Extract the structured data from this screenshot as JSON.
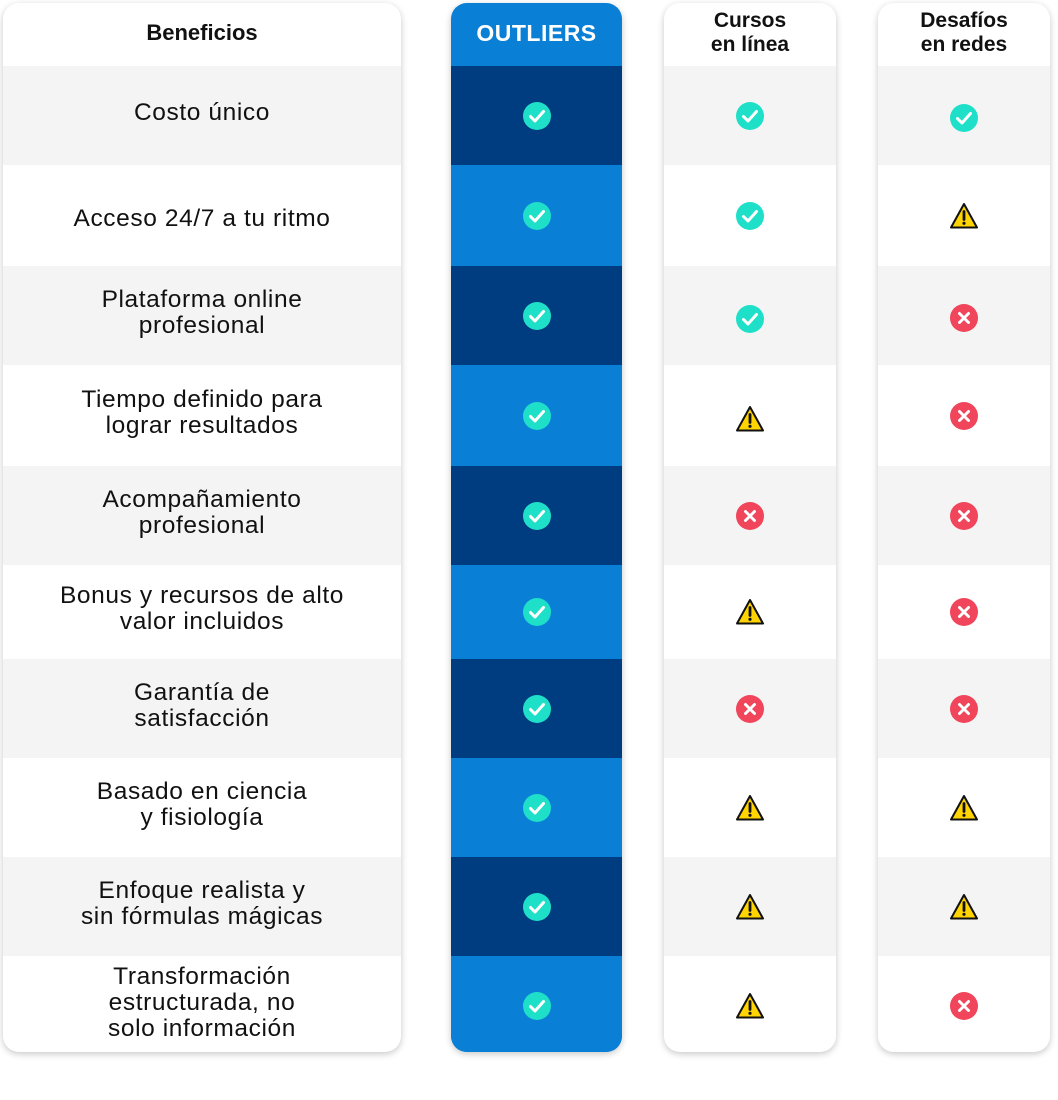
{
  "headers": {
    "benefits": "Beneficios",
    "outliers": "OUTLIERS",
    "cursos": "Cursos\nen línea",
    "redes": "Desafíos\nen redes"
  },
  "rows": [
    {
      "label": "Costo único",
      "outliers": "check",
      "cursos": "check",
      "redes": "check"
    },
    {
      "label": "Acceso 24/7 a tu ritmo",
      "outliers": "check",
      "cursos": "check",
      "redes": "warning"
    },
    {
      "label": "Plataforma online\nprofesional",
      "outliers": "check",
      "cursos": "check",
      "redes": "cross"
    },
    {
      "label": "Tiempo definido para\nlograr resultados",
      "outliers": "check",
      "cursos": "warning",
      "redes": "cross"
    },
    {
      "label": "Acompañamiento\nprofesional",
      "outliers": "check",
      "cursos": "cross",
      "redes": "cross"
    },
    {
      "label": "Bonus y recursos de alto\nvalor incluidos",
      "outliers": "check",
      "cursos": "warning",
      "redes": "cross"
    },
    {
      "label": "Garantía de\nsatisfacción",
      "outliers": "check",
      "cursos": "cross",
      "redes": "cross"
    },
    {
      "label": "Basado en ciencia\ny fisiología",
      "outliers": "check",
      "cursos": "warning",
      "redes": "warning"
    },
    {
      "label": "Enfoque realista y\nsin fórmulas mágicas",
      "outliers": "check",
      "cursos": "warning",
      "redes": "warning"
    },
    {
      "label": "Transformación\nestructurada, no\nsolo información",
      "outliers": "check",
      "cursos": "warning",
      "redes": "cross"
    }
  ],
  "icons": {
    "check": "check-circle-icon",
    "warning": "warning-triangle-icon",
    "cross": "cross-circle-icon"
  },
  "colors": {
    "outliers_dark": "#003d80",
    "outliers_light": "#0a7fd6",
    "check": "#1ee0c8",
    "warning": "#ffd400",
    "cross": "#f0455a",
    "row_alt": "#f4f4f4"
  }
}
